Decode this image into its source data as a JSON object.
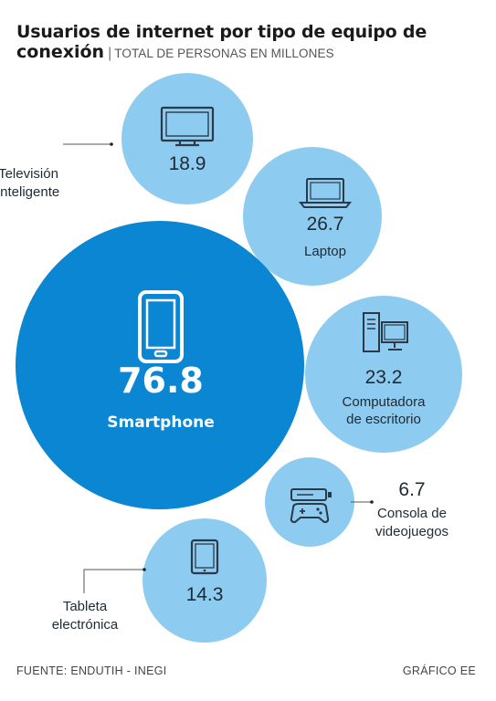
{
  "title": {
    "line1": "Usuarios de internet por tipo de equipo de",
    "line2": "conexión",
    "separator": "|",
    "subtitle": "TOTAL DE PERSONAS EN MILLONES"
  },
  "chart_data": {
    "type": "bubble",
    "unit": "millones",
    "items": [
      {
        "label": "Televisión inteligente",
        "label_lines": [
          "Televisión",
          "inteligente"
        ],
        "value": 18.9,
        "value_text": "18.9",
        "icon": "tv-icon"
      },
      {
        "label": "Laptop",
        "label_lines": [
          "Laptop"
        ],
        "value": 26.7,
        "value_text": "26.7",
        "icon": "laptop-icon"
      },
      {
        "label": "Smartphone",
        "label_lines": [
          "Smartphone"
        ],
        "value": 76.8,
        "value_text": "76.8",
        "icon": "smartphone-icon"
      },
      {
        "label": "Computadora de escritorio",
        "label_lines": [
          "Computadora",
          "de escritorio"
        ],
        "value": 23.2,
        "value_text": "23.2",
        "icon": "desktop-computer-icon"
      },
      {
        "label": "Consola de videojuegos",
        "label_lines": [
          "Consola de",
          "videojuegos"
        ],
        "value": 6.7,
        "value_text": "6.7",
        "icon": "game-console-icon"
      },
      {
        "label": "Tableta electrónica",
        "label_lines": [
          "Tableta",
          "electrónica"
        ],
        "value": 14.3,
        "value_text": "14.3",
        "icon": "tablet-icon"
      }
    ]
  },
  "colors": {
    "bubble_light": "#8ecbf0",
    "bubble_dark": "#0a86d2",
    "text_dark": "#1f2a33",
    "icon_stroke": "#2a3a48",
    "leader_line": "#555555"
  },
  "footer": {
    "source": "FUENTE: ENDUTIH - INEGI",
    "credit": "GRÁFICO EE"
  }
}
